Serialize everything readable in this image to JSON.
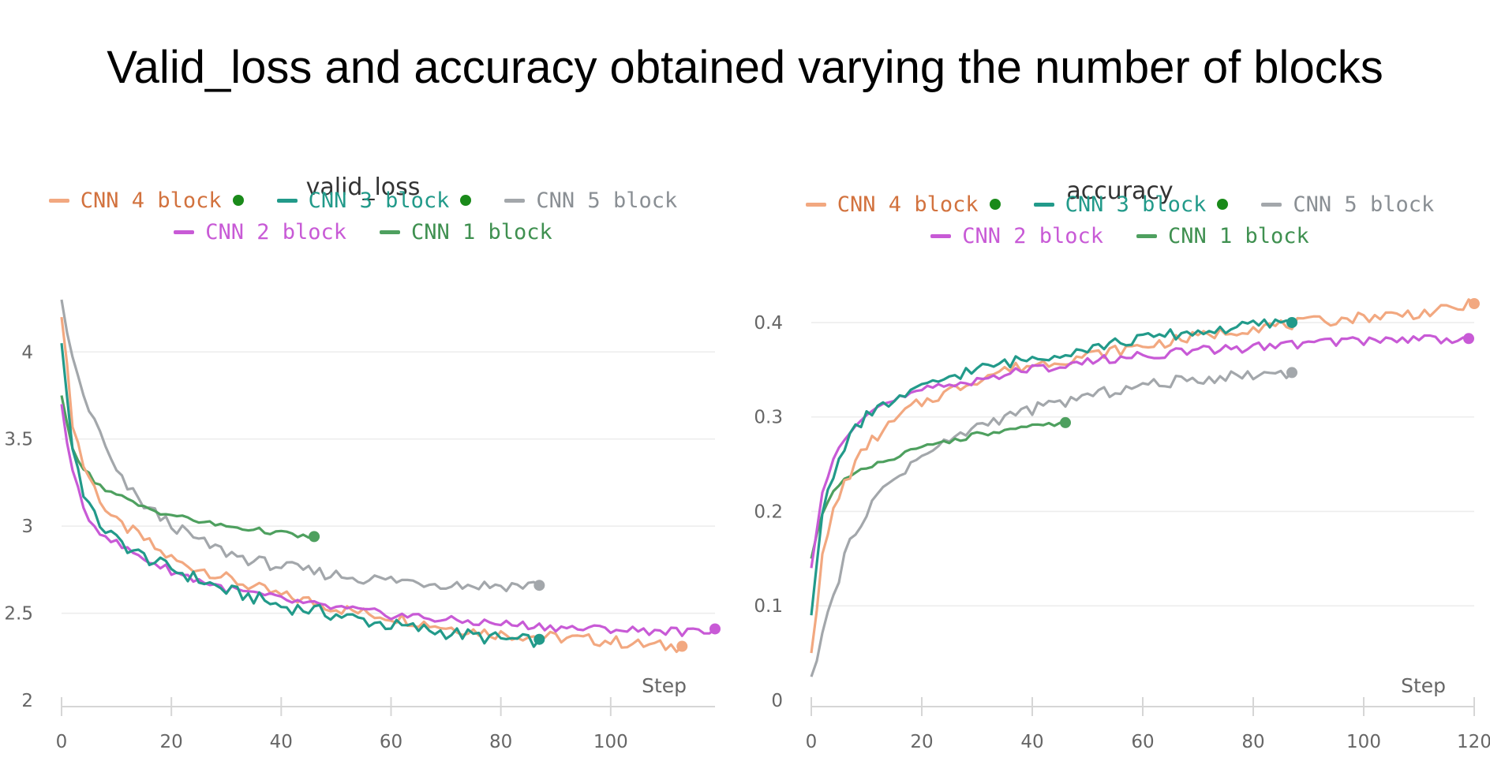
{
  "page": {
    "title": "Valid_loss and accuracy obtained varying the number of blocks"
  },
  "chart_data": [
    {
      "type": "line",
      "title": "valid_loss",
      "xlabel": "Step",
      "ylabel": "",
      "xlim": [
        0,
        119
      ],
      "ylim": [
        2,
        4.3
      ],
      "xticks": [
        0,
        20,
        40,
        60,
        80,
        100
      ],
      "yticks": [
        2,
        2.5,
        3,
        3.5,
        4
      ],
      "yticklabels": [
        "2",
        "2.5",
        "3",
        "3.5",
        "4"
      ],
      "grid": true,
      "legend_position": "top",
      "series": [
        {
          "name": "CNN 4 block",
          "color": "#f2a880",
          "text_color": "#d2723e",
          "marker": true,
          "points": [
            [
              0,
              4.2
            ],
            [
              2,
              3.6
            ],
            [
              4,
              3.35
            ],
            [
              6,
              3.22
            ],
            [
              8,
              3.1
            ],
            [
              10,
              3.02
            ],
            [
              14,
              2.95
            ],
            [
              18,
              2.85
            ],
            [
              22,
              2.78
            ],
            [
              26,
              2.75
            ],
            [
              30,
              2.7
            ],
            [
              35,
              2.65
            ],
            [
              40,
              2.6
            ],
            [
              45,
              2.57
            ],
            [
              50,
              2.53
            ],
            [
              55,
              2.5
            ],
            [
              60,
              2.48
            ],
            [
              65,
              2.45
            ],
            [
              70,
              2.42
            ],
            [
              75,
              2.4
            ],
            [
              80,
              2.38
            ],
            [
              85,
              2.37
            ],
            [
              90,
              2.36
            ],
            [
              95,
              2.35
            ],
            [
              100,
              2.34
            ],
            [
              105,
              2.32
            ],
            [
              110,
              2.31
            ],
            [
              113,
              2.31
            ]
          ]
        },
        {
          "name": "CNN 3 block",
          "color": "#229a8a",
          "text_color": "#229a8a",
          "marker": true,
          "points": [
            [
              0,
              4.05
            ],
            [
              2,
              3.45
            ],
            [
              4,
              3.2
            ],
            [
              6,
              3.05
            ],
            [
              8,
              2.98
            ],
            [
              10,
              2.92
            ],
            [
              14,
              2.84
            ],
            [
              18,
              2.78
            ],
            [
              22,
              2.73
            ],
            [
              26,
              2.68
            ],
            [
              30,
              2.63
            ],
            [
              35,
              2.59
            ],
            [
              40,
              2.54
            ],
            [
              45,
              2.52
            ],
            [
              50,
              2.49
            ],
            [
              55,
              2.46
            ],
            [
              60,
              2.43
            ],
            [
              65,
              2.41
            ],
            [
              70,
              2.39
            ],
            [
              75,
              2.37
            ],
            [
              80,
              2.35
            ],
            [
              85,
              2.34
            ],
            [
              87,
              2.35
            ]
          ]
        },
        {
          "name": "CNN 5 block",
          "color": "#a3a7ab",
          "text_color": "#8a8f94",
          "marker": false,
          "points": [
            [
              0,
              4.3
            ],
            [
              2,
              3.95
            ],
            [
              4,
              3.75
            ],
            [
              6,
              3.6
            ],
            [
              8,
              3.45
            ],
            [
              10,
              3.3
            ],
            [
              14,
              3.15
            ],
            [
              18,
              3.05
            ],
            [
              22,
              2.97
            ],
            [
              26,
              2.9
            ],
            [
              30,
              2.85
            ],
            [
              35,
              2.8
            ],
            [
              40,
              2.77
            ],
            [
              45,
              2.74
            ],
            [
              50,
              2.72
            ],
            [
              55,
              2.7
            ],
            [
              60,
              2.69
            ],
            [
              65,
              2.68
            ],
            [
              70,
              2.67
            ],
            [
              75,
              2.66
            ],
            [
              80,
              2.66
            ],
            [
              85,
              2.66
            ],
            [
              87,
              2.66
            ]
          ]
        },
        {
          "name": "CNN 2 block",
          "color": "#c85ad6",
          "text_color": "#c85ad6",
          "marker": true,
          "points": [
            [
              0,
              3.7
            ],
            [
              2,
              3.3
            ],
            [
              4,
              3.1
            ],
            [
              6,
              3.0
            ],
            [
              8,
              2.95
            ],
            [
              10,
              2.9
            ],
            [
              14,
              2.83
            ],
            [
              18,
              2.77
            ],
            [
              22,
              2.72
            ],
            [
              26,
              2.68
            ],
            [
              30,
              2.64
            ],
            [
              35,
              2.61
            ],
            [
              40,
              2.58
            ],
            [
              45,
              2.55
            ],
            [
              50,
              2.53
            ],
            [
              55,
              2.51
            ],
            [
              60,
              2.49
            ],
            [
              65,
              2.48
            ],
            [
              70,
              2.46
            ],
            [
              75,
              2.45
            ],
            [
              80,
              2.44
            ],
            [
              85,
              2.43
            ],
            [
              90,
              2.42
            ],
            [
              95,
              2.41
            ],
            [
              100,
              2.41
            ],
            [
              105,
              2.4
            ],
            [
              110,
              2.4
            ],
            [
              115,
              2.39
            ],
            [
              119,
              2.41
            ]
          ]
        },
        {
          "name": "CNN 1 block",
          "color": "#4ea05f",
          "text_color": "#3f9050",
          "marker": false,
          "points": [
            [
              0,
              3.75
            ],
            [
              2,
              3.45
            ],
            [
              4,
              3.33
            ],
            [
              6,
              3.26
            ],
            [
              8,
              3.21
            ],
            [
              10,
              3.18
            ],
            [
              14,
              3.12
            ],
            [
              18,
              3.08
            ],
            [
              22,
              3.05
            ],
            [
              26,
              3.02
            ],
            [
              30,
              3.0
            ],
            [
              35,
              2.98
            ],
            [
              40,
              2.96
            ],
            [
              44,
              2.94
            ],
            [
              46,
              2.94
            ]
          ]
        }
      ]
    },
    {
      "type": "line",
      "title": "accuracy",
      "xlabel": "Step",
      "ylabel": "",
      "xlim": [
        0,
        120
      ],
      "ylim": [
        0,
        0.42
      ],
      "xticks": [
        0,
        20,
        40,
        60,
        80,
        100,
        120
      ],
      "yticks": [
        0,
        0.1,
        0.2,
        0.3,
        0.4
      ],
      "yticklabels": [
        "0",
        "0.1",
        "0.2",
        "0.3",
        "0.4"
      ],
      "grid": true,
      "legend_position": "top",
      "series": [
        {
          "name": "CNN 4 block",
          "color": "#f2a880",
          "text_color": "#d2723e",
          "marker": true,
          "points": [
            [
              0,
              0.05
            ],
            [
              2,
              0.15
            ],
            [
              4,
              0.2
            ],
            [
              6,
              0.23
            ],
            [
              8,
              0.25
            ],
            [
              10,
              0.27
            ],
            [
              14,
              0.29
            ],
            [
              18,
              0.31
            ],
            [
              22,
              0.32
            ],
            [
              26,
              0.33
            ],
            [
              30,
              0.34
            ],
            [
              35,
              0.35
            ],
            [
              40,
              0.355
            ],
            [
              45,
              0.36
            ],
            [
              50,
              0.365
            ],
            [
              55,
              0.37
            ],
            [
              60,
              0.375
            ],
            [
              65,
              0.38
            ],
            [
              70,
              0.385
            ],
            [
              75,
              0.39
            ],
            [
              80,
              0.395
            ],
            [
              85,
              0.397
            ],
            [
              90,
              0.4
            ],
            [
              95,
              0.403
            ],
            [
              100,
              0.406
            ],
            [
              105,
              0.408
            ],
            [
              110,
              0.41
            ],
            [
              115,
              0.413
            ],
            [
              120,
              0.42
            ]
          ]
        },
        {
          "name": "CNN 3 block",
          "color": "#229a8a",
          "text_color": "#229a8a",
          "marker": true,
          "points": [
            [
              0,
              0.09
            ],
            [
              2,
              0.2
            ],
            [
              4,
              0.24
            ],
            [
              6,
              0.27
            ],
            [
              8,
              0.29
            ],
            [
              10,
              0.3
            ],
            [
              14,
              0.315
            ],
            [
              18,
              0.325
            ],
            [
              22,
              0.335
            ],
            [
              26,
              0.345
            ],
            [
              30,
              0.35
            ],
            [
              35,
              0.357
            ],
            [
              40,
              0.362
            ],
            [
              45,
              0.368
            ],
            [
              50,
              0.373
            ],
            [
              55,
              0.378
            ],
            [
              60,
              0.383
            ],
            [
              65,
              0.387
            ],
            [
              70,
              0.39
            ],
            [
              75,
              0.393
            ],
            [
              80,
              0.397
            ],
            [
              85,
              0.4
            ],
            [
              87,
              0.4
            ]
          ]
        },
        {
          "name": "CNN 5 block",
          "color": "#a3a7ab",
          "text_color": "#8a8f94",
          "marker": false,
          "points": [
            [
              0,
              0.025
            ],
            [
              2,
              0.07
            ],
            [
              4,
              0.11
            ],
            [
              6,
              0.15
            ],
            [
              8,
              0.18
            ],
            [
              10,
              0.2
            ],
            [
              14,
              0.23
            ],
            [
              18,
              0.25
            ],
            [
              22,
              0.265
            ],
            [
              26,
              0.278
            ],
            [
              30,
              0.29
            ],
            [
              35,
              0.3
            ],
            [
              40,
              0.308
            ],
            [
              45,
              0.315
            ],
            [
              50,
              0.322
            ],
            [
              55,
              0.328
            ],
            [
              60,
              0.333
            ],
            [
              65,
              0.337
            ],
            [
              70,
              0.34
            ],
            [
              75,
              0.343
            ],
            [
              80,
              0.345
            ],
            [
              85,
              0.347
            ],
            [
              87,
              0.347
            ]
          ]
        },
        {
          "name": "CNN 2 block",
          "color": "#c85ad6",
          "text_color": "#c85ad6",
          "marker": true,
          "points": [
            [
              0,
              0.14
            ],
            [
              2,
              0.22
            ],
            [
              4,
              0.26
            ],
            [
              6,
              0.28
            ],
            [
              8,
              0.295
            ],
            [
              10,
              0.305
            ],
            [
              14,
              0.315
            ],
            [
              18,
              0.323
            ],
            [
              22,
              0.33
            ],
            [
              26,
              0.335
            ],
            [
              30,
              0.34
            ],
            [
              35,
              0.345
            ],
            [
              40,
              0.35
            ],
            [
              45,
              0.355
            ],
            [
              50,
              0.358
            ],
            [
              55,
              0.362
            ],
            [
              60,
              0.365
            ],
            [
              65,
              0.368
            ],
            [
              70,
              0.37
            ],
            [
              75,
              0.372
            ],
            [
              80,
              0.374
            ],
            [
              85,
              0.376
            ],
            [
              90,
              0.378
            ],
            [
              95,
              0.38
            ],
            [
              100,
              0.381
            ],
            [
              105,
              0.382
            ],
            [
              110,
              0.383
            ],
            [
              115,
              0.383
            ],
            [
              119,
              0.383
            ]
          ]
        },
        {
          "name": "CNN 1 block",
          "color": "#4ea05f",
          "text_color": "#3f9050",
          "marker": true,
          "points": [
            [
              0,
              0.15
            ],
            [
              2,
              0.2
            ],
            [
              4,
              0.22
            ],
            [
              6,
              0.232
            ],
            [
              8,
              0.24
            ],
            [
              10,
              0.248
            ],
            [
              14,
              0.256
            ],
            [
              18,
              0.263
            ],
            [
              22,
              0.27
            ],
            [
              26,
              0.276
            ],
            [
              30,
              0.281
            ],
            [
              35,
              0.285
            ],
            [
              40,
              0.289
            ],
            [
              44,
              0.293
            ],
            [
              46,
              0.294
            ]
          ]
        }
      ]
    }
  ]
}
